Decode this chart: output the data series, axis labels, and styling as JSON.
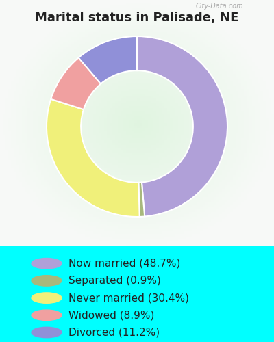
{
  "title": "Marital status in Palisade, NE",
  "title_fontsize": 13,
  "bg_outer": "#00FFFF",
  "slices": [
    {
      "label": "Now married (48.7%)",
      "value": 48.7,
      "color": "#b0a0d8"
    },
    {
      "label": "Separated (0.9%)",
      "value": 0.9,
      "color": "#a8b87c"
    },
    {
      "label": "Never married (30.4%)",
      "value": 30.4,
      "color": "#f0f07a"
    },
    {
      "label": "Widowed (8.9%)",
      "value": 8.9,
      "color": "#f0a0a0"
    },
    {
      "label": "Divorced (11.2%)",
      "value": 11.2,
      "color": "#9090d8"
    }
  ],
  "legend_fontsize": 11,
  "donut_width": 0.38,
  "startangle": 90
}
